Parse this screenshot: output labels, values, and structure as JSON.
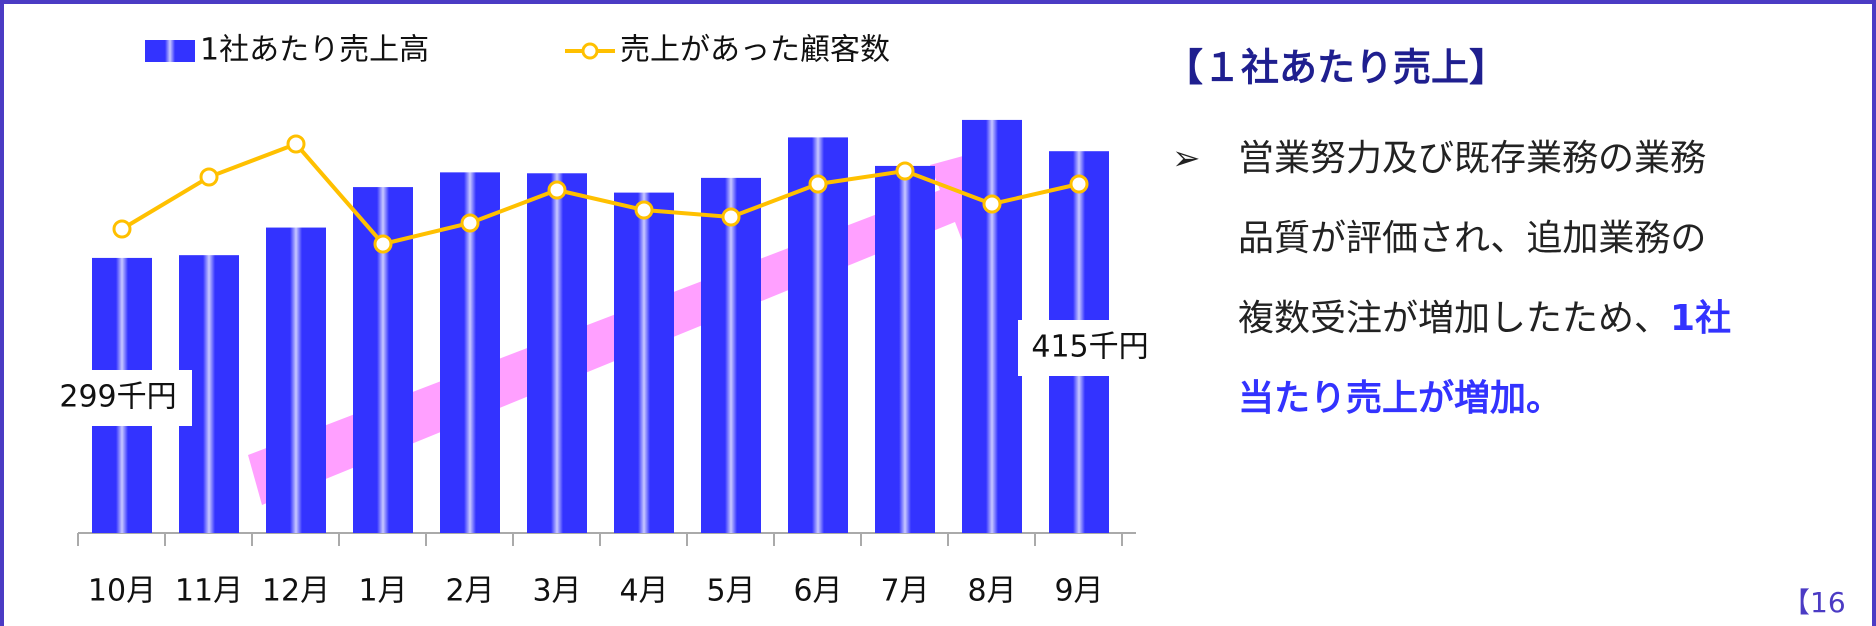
{
  "chart_data": {
    "type": "bar",
    "categories": [
      "10月",
      "11月",
      "12月",
      "1月",
      "2月",
      "3月",
      "4月",
      "5月",
      "6月",
      "7月",
      "8月",
      "9月"
    ],
    "series": [
      {
        "name": "1社あたり売上高",
        "type": "bar",
        "color": "#3333ff",
        "values": [
          299,
          302,
          332,
          376,
          392,
          391,
          370,
          386,
          430,
          399,
          449,
          415
        ],
        "value_labels": [
          "299千円",
          null,
          null,
          null,
          null,
          null,
          null,
          null,
          null,
          null,
          null,
          "415千円"
        ]
      },
      {
        "name": "売上があった顧客数",
        "type": "line",
        "color": "#ffc000",
        "values": [
          304,
          356,
          389,
          289,
          310,
          343,
          323,
          316,
          349,
          362,
          329,
          349
        ]
      }
    ]
  },
  "panel": {
    "heading": "【１社あたり売上】",
    "bullet": "➢",
    "lines": [
      "営業努力及び既存業務の業務",
      "品質が評価され、追加業務の",
      "複数受注が増加したため、"
    ],
    "highlight": [
      "1社",
      "当たり売上が増加。"
    ]
  },
  "page_number": "【16"
}
